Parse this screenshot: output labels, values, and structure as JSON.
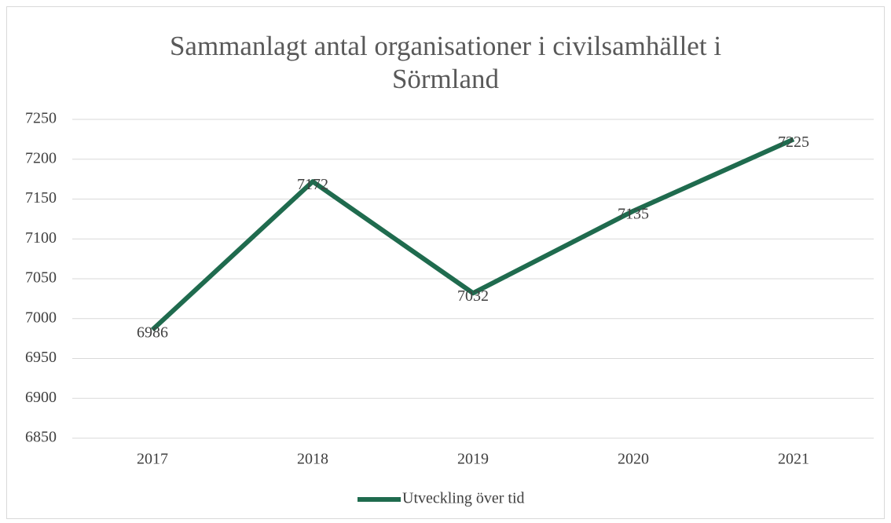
{
  "chart_data": {
    "type": "line",
    "title": "Sammanlagt antal organisationer i civilsamhället i Sörmland",
    "categories": [
      "2017",
      "2018",
      "2019",
      "2020",
      "2021"
    ],
    "series": [
      {
        "name": "Utveckling över tid",
        "color": "#1f6b4e",
        "values": [
          6986,
          7172,
          7032,
          7135,
          7225
        ]
      }
    ],
    "ylim": [
      6850,
      7250
    ],
    "yticks": [
      6850,
      6900,
      6950,
      7000,
      7050,
      7100,
      7150,
      7200,
      7250
    ],
    "grid": true,
    "legend": "bottom",
    "data_labels": true
  }
}
